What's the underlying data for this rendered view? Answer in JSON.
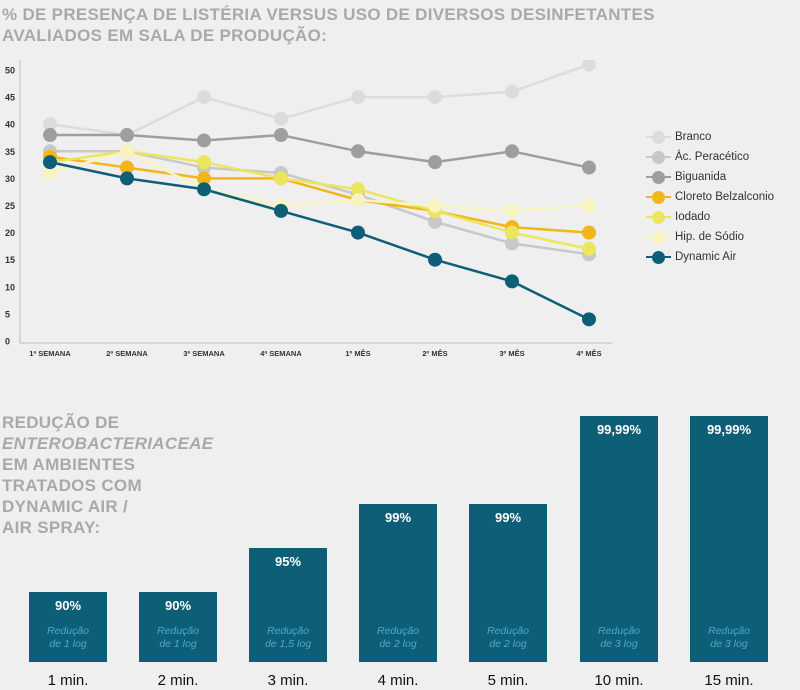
{
  "chart_data": [
    {
      "type": "line",
      "title_line1": "% DE PRESENÇA DE LISTÉRIA VERSUS USO DE DIVERSOS DESINFETANTES",
      "title_line2": "AVALIADOS EM SALA DE PRODUÇÃO:",
      "categories": [
        "1ª SEMANA",
        "2ª SEMANA",
        "3ª SEMANA",
        "4ª SEMANA",
        "1º MÊS",
        "2º MÊS",
        "3º MÊS",
        "4º MÊS"
      ],
      "ylim": [
        0,
        50
      ],
      "yticks": [
        0,
        5,
        10,
        15,
        20,
        25,
        30,
        35,
        40,
        45,
        50
      ],
      "grid": false,
      "legend_position": "right",
      "series": [
        {
          "name": "Branco",
          "color": "#dcdcdc",
          "values": [
            40,
            38,
            45,
            41,
            45,
            45,
            46,
            51
          ]
        },
        {
          "name": "Ác. Peracético",
          "color": "#c8c8c8",
          "values": [
            35,
            35,
            32,
            31,
            27,
            22,
            18,
            16
          ]
        },
        {
          "name": "Biguanida",
          "color": "#9e9e9e",
          "values": [
            38,
            38,
            37,
            38,
            35,
            33,
            35,
            32
          ]
        },
        {
          "name": "Cloreto Belzalconio",
          "color": "#f2b619",
          "values": [
            34,
            32,
            30,
            30,
            26,
            24,
            21,
            20
          ]
        },
        {
          "name": "Iodado",
          "color": "#ece55f",
          "values": [
            33,
            35,
            33,
            30,
            28,
            24,
            20,
            17
          ]
        },
        {
          "name": "Hip. de Sódio",
          "color": "#f8f3bf",
          "values": [
            31,
            35,
            28,
            25,
            26,
            25,
            24,
            25
          ]
        },
        {
          "name": "Dynamic Air",
          "color": "#0d5f78",
          "values": [
            33,
            30,
            28,
            24,
            20,
            15,
            11,
            4
          ]
        }
      ]
    },
    {
      "type": "bar",
      "title_parts": [
        "REDUÇÃO DE",
        "ENTEROBACTERIACEAE",
        "EM AMBIENTES",
        "TRATADOS COM",
        "DYNAMIC AIR /",
        "AIR SPRAY:"
      ],
      "color": "#0d5f78",
      "categories": [
        "1 min.",
        "2 min.",
        "3 min.",
        "4 min.",
        "5 min.",
        "10 min.",
        "15 min."
      ],
      "values": [
        90,
        90,
        95,
        99,
        99,
        99.99,
        99.99
      ],
      "value_labels": [
        "90%",
        "90%",
        "95%",
        "99%",
        "99%",
        "99,99%",
        "99,99%"
      ],
      "subtitle_line1": [
        "Redução",
        "Redução",
        "Redução",
        "Redução",
        "Redução",
        "Redução",
        "Redução"
      ],
      "subtitle_line2": [
        "de 1 log",
        "de 1 log",
        "de 1,5 log",
        "de 2 log",
        "de 2 log",
        "de 3 log",
        "de 3 log"
      ],
      "log_reduction": [
        1,
        1,
        1.5,
        2,
        2,
        3,
        3
      ]
    }
  ]
}
